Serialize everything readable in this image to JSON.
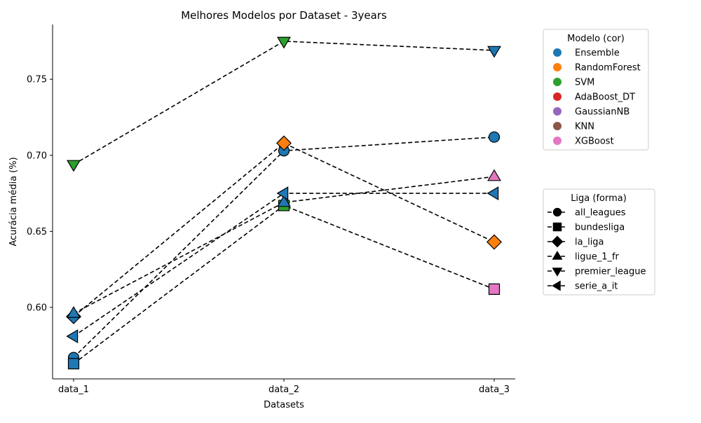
{
  "chart_data": {
    "type": "line",
    "title": "Melhores Modelos por Dataset - 3years",
    "xlabel": "Datasets",
    "ylabel": "Acurácia média (%)",
    "categories": [
      "data_1",
      "data_2",
      "data_3"
    ],
    "ylim": [
      0.553,
      0.786
    ],
    "yticks": [
      0.6,
      0.65,
      0.7,
      0.75
    ],
    "ytick_labels": [
      "0.60",
      "0.65",
      "0.70",
      "0.75"
    ],
    "grid": false,
    "line_style": "dashed",
    "line_color": "#000000",
    "models": [
      {
        "name": "Ensemble",
        "color": "#1f77b4"
      },
      {
        "name": "RandomForest",
        "color": "#ff7f0e"
      },
      {
        "name": "SVM",
        "color": "#2ca02c"
      },
      {
        "name": "AdaBoost_DT",
        "color": "#d62728"
      },
      {
        "name": "GaussianNB",
        "color": "#9467bd"
      },
      {
        "name": "KNN",
        "color": "#8c564b"
      },
      {
        "name": "XGBoost",
        "color": "#e377c2"
      }
    ],
    "leagues": [
      {
        "name": "all_leagues",
        "marker": "circle"
      },
      {
        "name": "bundesliga",
        "marker": "square"
      },
      {
        "name": "la_liga",
        "marker": "diamond"
      },
      {
        "name": "ligue_1_fr",
        "marker": "triangle-up"
      },
      {
        "name": "premier_league",
        "marker": "triangle-down"
      },
      {
        "name": "serie_a_it",
        "marker": "triangle-left"
      }
    ],
    "series": [
      {
        "league": "all_leagues",
        "values": [
          0.567,
          0.703,
          0.712
        ],
        "models": [
          "Ensemble",
          "Ensemble",
          "Ensemble"
        ]
      },
      {
        "league": "bundesliga",
        "values": [
          0.563,
          0.667,
          0.612
        ],
        "models": [
          "Ensemble",
          "SVM",
          "XGBoost"
        ]
      },
      {
        "league": "la_liga",
        "values": [
          0.594,
          0.708,
          0.643
        ],
        "models": [
          "Ensemble",
          "RandomForest",
          "RandomForest"
        ]
      },
      {
        "league": "ligue_1_fr",
        "values": [
          0.596,
          0.669,
          0.686
        ],
        "models": [
          "Ensemble",
          "Ensemble",
          "XGBoost"
        ]
      },
      {
        "league": "premier_league",
        "values": [
          0.694,
          0.775,
          0.769
        ],
        "models": [
          "SVM",
          "SVM",
          "Ensemble"
        ]
      },
      {
        "league": "serie_a_it",
        "values": [
          0.581,
          0.675,
          0.675
        ],
        "models": [
          "Ensemble",
          "Ensemble",
          "Ensemble"
        ]
      }
    ],
    "legend_models_title": "Modelo (cor)",
    "legend_leagues_title": "Liga (forma)",
    "legend_placement": "right, outside plot"
  }
}
